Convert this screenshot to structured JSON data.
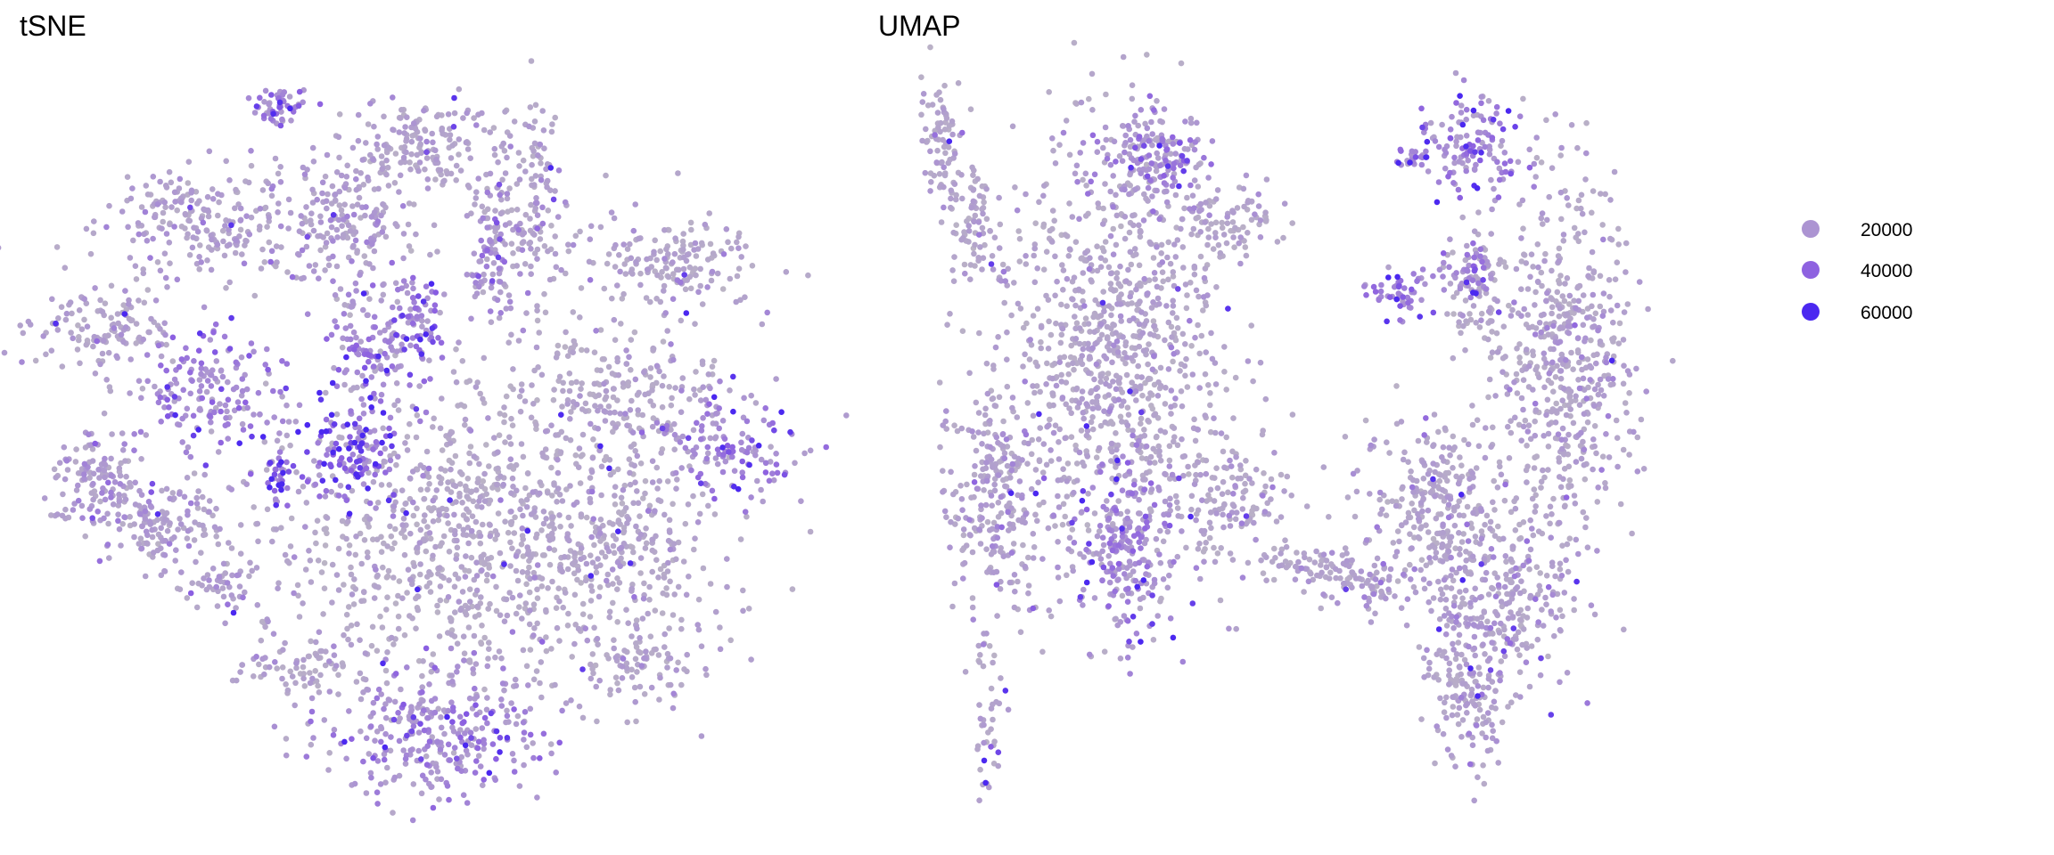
{
  "chart_data": [
    {
      "type": "scatter",
      "title": "tSNE",
      "xlabel": "",
      "ylabel": "",
      "xlim": [
        -50,
        50
      ],
      "ylim": [
        -50,
        50
      ],
      "grid": false,
      "clusters_note_units": "embedding",
      "clusters": [
        {
          "x": -19.3,
          "y": 45.6,
          "sx": 2.6,
          "sy": 1.8,
          "n": 50,
          "value": 25000
        },
        {
          "x": -0.9,
          "y": 40.4,
          "sx": 7.0,
          "sy": 3.5,
          "n": 170,
          "value": 15000
        },
        {
          "x": -30.7,
          "y": 29.8,
          "sx": 8.8,
          "sy": 5.3,
          "n": 210,
          "value": 17000
        },
        {
          "x": -11.4,
          "y": 29.8,
          "sx": 7.0,
          "sy": 6.1,
          "n": 210,
          "value": 18000
        },
        {
          "x": -43.0,
          "y": 15.8,
          "sx": 6.1,
          "sy": 4.4,
          "n": 130,
          "value": 15000
        },
        {
          "x": -28.9,
          "y": 7.0,
          "sx": 6.1,
          "sy": 5.3,
          "n": 170,
          "value": 22000
        },
        {
          "x": -43.9,
          "y": -4.4,
          "sx": 4.4,
          "sy": 4.4,
          "n": 130,
          "value": 19000
        },
        {
          "x": -35.1,
          "y": -10.5,
          "sx": 5.3,
          "sy": 3.5,
          "n": 130,
          "value": 18000
        },
        {
          "x": -27.2,
          "y": -18.4,
          "sx": 3.5,
          "sy": 2.6,
          "n": 50,
          "value": 19000
        },
        {
          "x": -10.5,
          "y": -0.9,
          "sx": 4.4,
          "sy": 5.3,
          "n": 130,
          "value": 38000
        },
        {
          "x": -19.3,
          "y": -4.4,
          "sx": 1.8,
          "sy": 2.6,
          "n": 35,
          "value": 40000
        },
        {
          "x": -6.1,
          "y": 14.0,
          "sx": 4.4,
          "sy": 5.3,
          "n": 130,
          "value": 22000
        },
        {
          "x": -0.9,
          "y": 17.5,
          "sx": 2.6,
          "sy": 4.4,
          "n": 50,
          "value": 30000
        },
        {
          "x": 13.2,
          "y": 29.8,
          "sx": 4.4,
          "sy": 7.0,
          "n": 100,
          "value": 15000
        },
        {
          "x": 6.1,
          "y": -12.3,
          "sx": 19.3,
          "sy": 14.0,
          "n": 1000,
          "value": 12000
        },
        {
          "x": 31.6,
          "y": 24.6,
          "sx": 7.9,
          "sy": 4.4,
          "n": 170,
          "value": 14000
        },
        {
          "x": 27.2,
          "y": 7.0,
          "sx": 8.8,
          "sy": 7.0,
          "n": 210,
          "value": 13000
        },
        {
          "x": 41.2,
          "y": 0.0,
          "sx": 6.1,
          "sy": 4.4,
          "n": 130,
          "value": 25000
        },
        {
          "x": 25.4,
          "y": -14.0,
          "sx": 8.8,
          "sy": 7.0,
          "n": 170,
          "value": 13000
        },
        {
          "x": 28.9,
          "y": -29.8,
          "sx": 6.1,
          "sy": 3.5,
          "n": 85,
          "value": 15000
        },
        {
          "x": 0.9,
          "y": -38.6,
          "sx": 9.6,
          "sy": 6.1,
          "n": 300,
          "value": 22000
        },
        {
          "x": -16.7,
          "y": -29.8,
          "sx": 5.3,
          "sy": 2.6,
          "n": 70,
          "value": 14000
        },
        {
          "x": 14.9,
          "y": 36.8,
          "sx": 1.8,
          "sy": 7.0,
          "n": 50,
          "value": 15000
        },
        {
          "x": 8.8,
          "y": 24.6,
          "sx": 2.6,
          "sy": 7.0,
          "n": 85,
          "value": 20000
        }
      ]
    },
    {
      "type": "scatter",
      "title": "UMAP",
      "xlabel": "",
      "ylabel": "",
      "xlim": [
        -50,
        50
      ],
      "ylim": [
        -50,
        50
      ],
      "grid": false,
      "clusters": [
        {
          "x": -47.1,
          "y": 41.5,
          "sx": 2.2,
          "sy": 6.5,
          "n": 85,
          "value": 15000
        },
        {
          "x": -42.4,
          "y": 30.3,
          "sx": 2.8,
          "sy": 4.7,
          "n": 70,
          "value": 14000
        },
        {
          "x": -22.8,
          "y": 11.6,
          "sx": 10.3,
          "sy": 20.6,
          "n": 950,
          "value": 14000
        },
        {
          "x": -17.2,
          "y": 39.6,
          "sx": 4.7,
          "sy": 4.7,
          "n": 170,
          "value": 20000
        },
        {
          "x": -6.0,
          "y": 30.3,
          "sx": 4.7,
          "sy": 3.7,
          "n": 85,
          "value": 14000
        },
        {
          "x": -39.6,
          "y": -9.0,
          "sx": 5.6,
          "sy": 11.2,
          "n": 260,
          "value": 17000
        },
        {
          "x": -20.9,
          "y": -16.4,
          "sx": 4.7,
          "sy": 8.4,
          "n": 210,
          "value": 22000
        },
        {
          "x": -6.0,
          "y": -9.0,
          "sx": 5.6,
          "sy": 6.5,
          "n": 130,
          "value": 14000
        },
        {
          "x": -40.6,
          "y": -38.9,
          "sx": 1.5,
          "sy": 7.5,
          "n": 45,
          "value": 14000
        },
        {
          "x": 5.2,
          "y": -18.3,
          "sx": 4.7,
          "sy": 2.2,
          "n": 50,
          "value": 13000
        },
        {
          "x": 12.7,
          "y": -21.1,
          "sx": 4.7,
          "sy": 2.8,
          "n": 85,
          "value": 17000
        },
        {
          "x": 28.6,
          "y": 41.5,
          "sx": 4.7,
          "sy": 4.7,
          "n": 130,
          "value": 25000
        },
        {
          "x": 20.2,
          "y": 39.6,
          "sx": 1.9,
          "sy": 1.5,
          "n": 25,
          "value": 25000
        },
        {
          "x": 17.4,
          "y": 20.0,
          "sx": 2.8,
          "sy": 2.2,
          "n": 50,
          "value": 28000
        },
        {
          "x": 27.7,
          "y": 22.8,
          "sx": 2.8,
          "sy": 2.8,
          "n": 50,
          "value": 25000
        },
        {
          "x": 41.7,
          "y": 9.7,
          "sx": 6.5,
          "sy": 16.8,
          "n": 520,
          "value": 15000
        },
        {
          "x": 29.5,
          "y": 19.1,
          "sx": 3.7,
          "sy": 7.5,
          "n": 85,
          "value": 13000
        },
        {
          "x": 23.9,
          "y": -9.0,
          "sx": 7.5,
          "sy": 7.5,
          "n": 260,
          "value": 14000
        },
        {
          "x": 31.4,
          "y": -23.9,
          "sx": 7.5,
          "sy": 9.3,
          "n": 300,
          "value": 17000
        },
        {
          "x": 27.7,
          "y": -37.0,
          "sx": 3.7,
          "sy": 7.5,
          "n": 130,
          "value": 17000
        }
      ]
    }
  ],
  "legend": {
    "placement": "right",
    "entries": [
      {
        "label": "20000",
        "value": 20000,
        "color": "#AC94D2"
      },
      {
        "label": "40000",
        "value": 40000,
        "color": "#8E62E0"
      },
      {
        "label": "60000",
        "value": 60000,
        "color": "#4B28F0"
      }
    ],
    "low_color": "#BDB8C4"
  }
}
